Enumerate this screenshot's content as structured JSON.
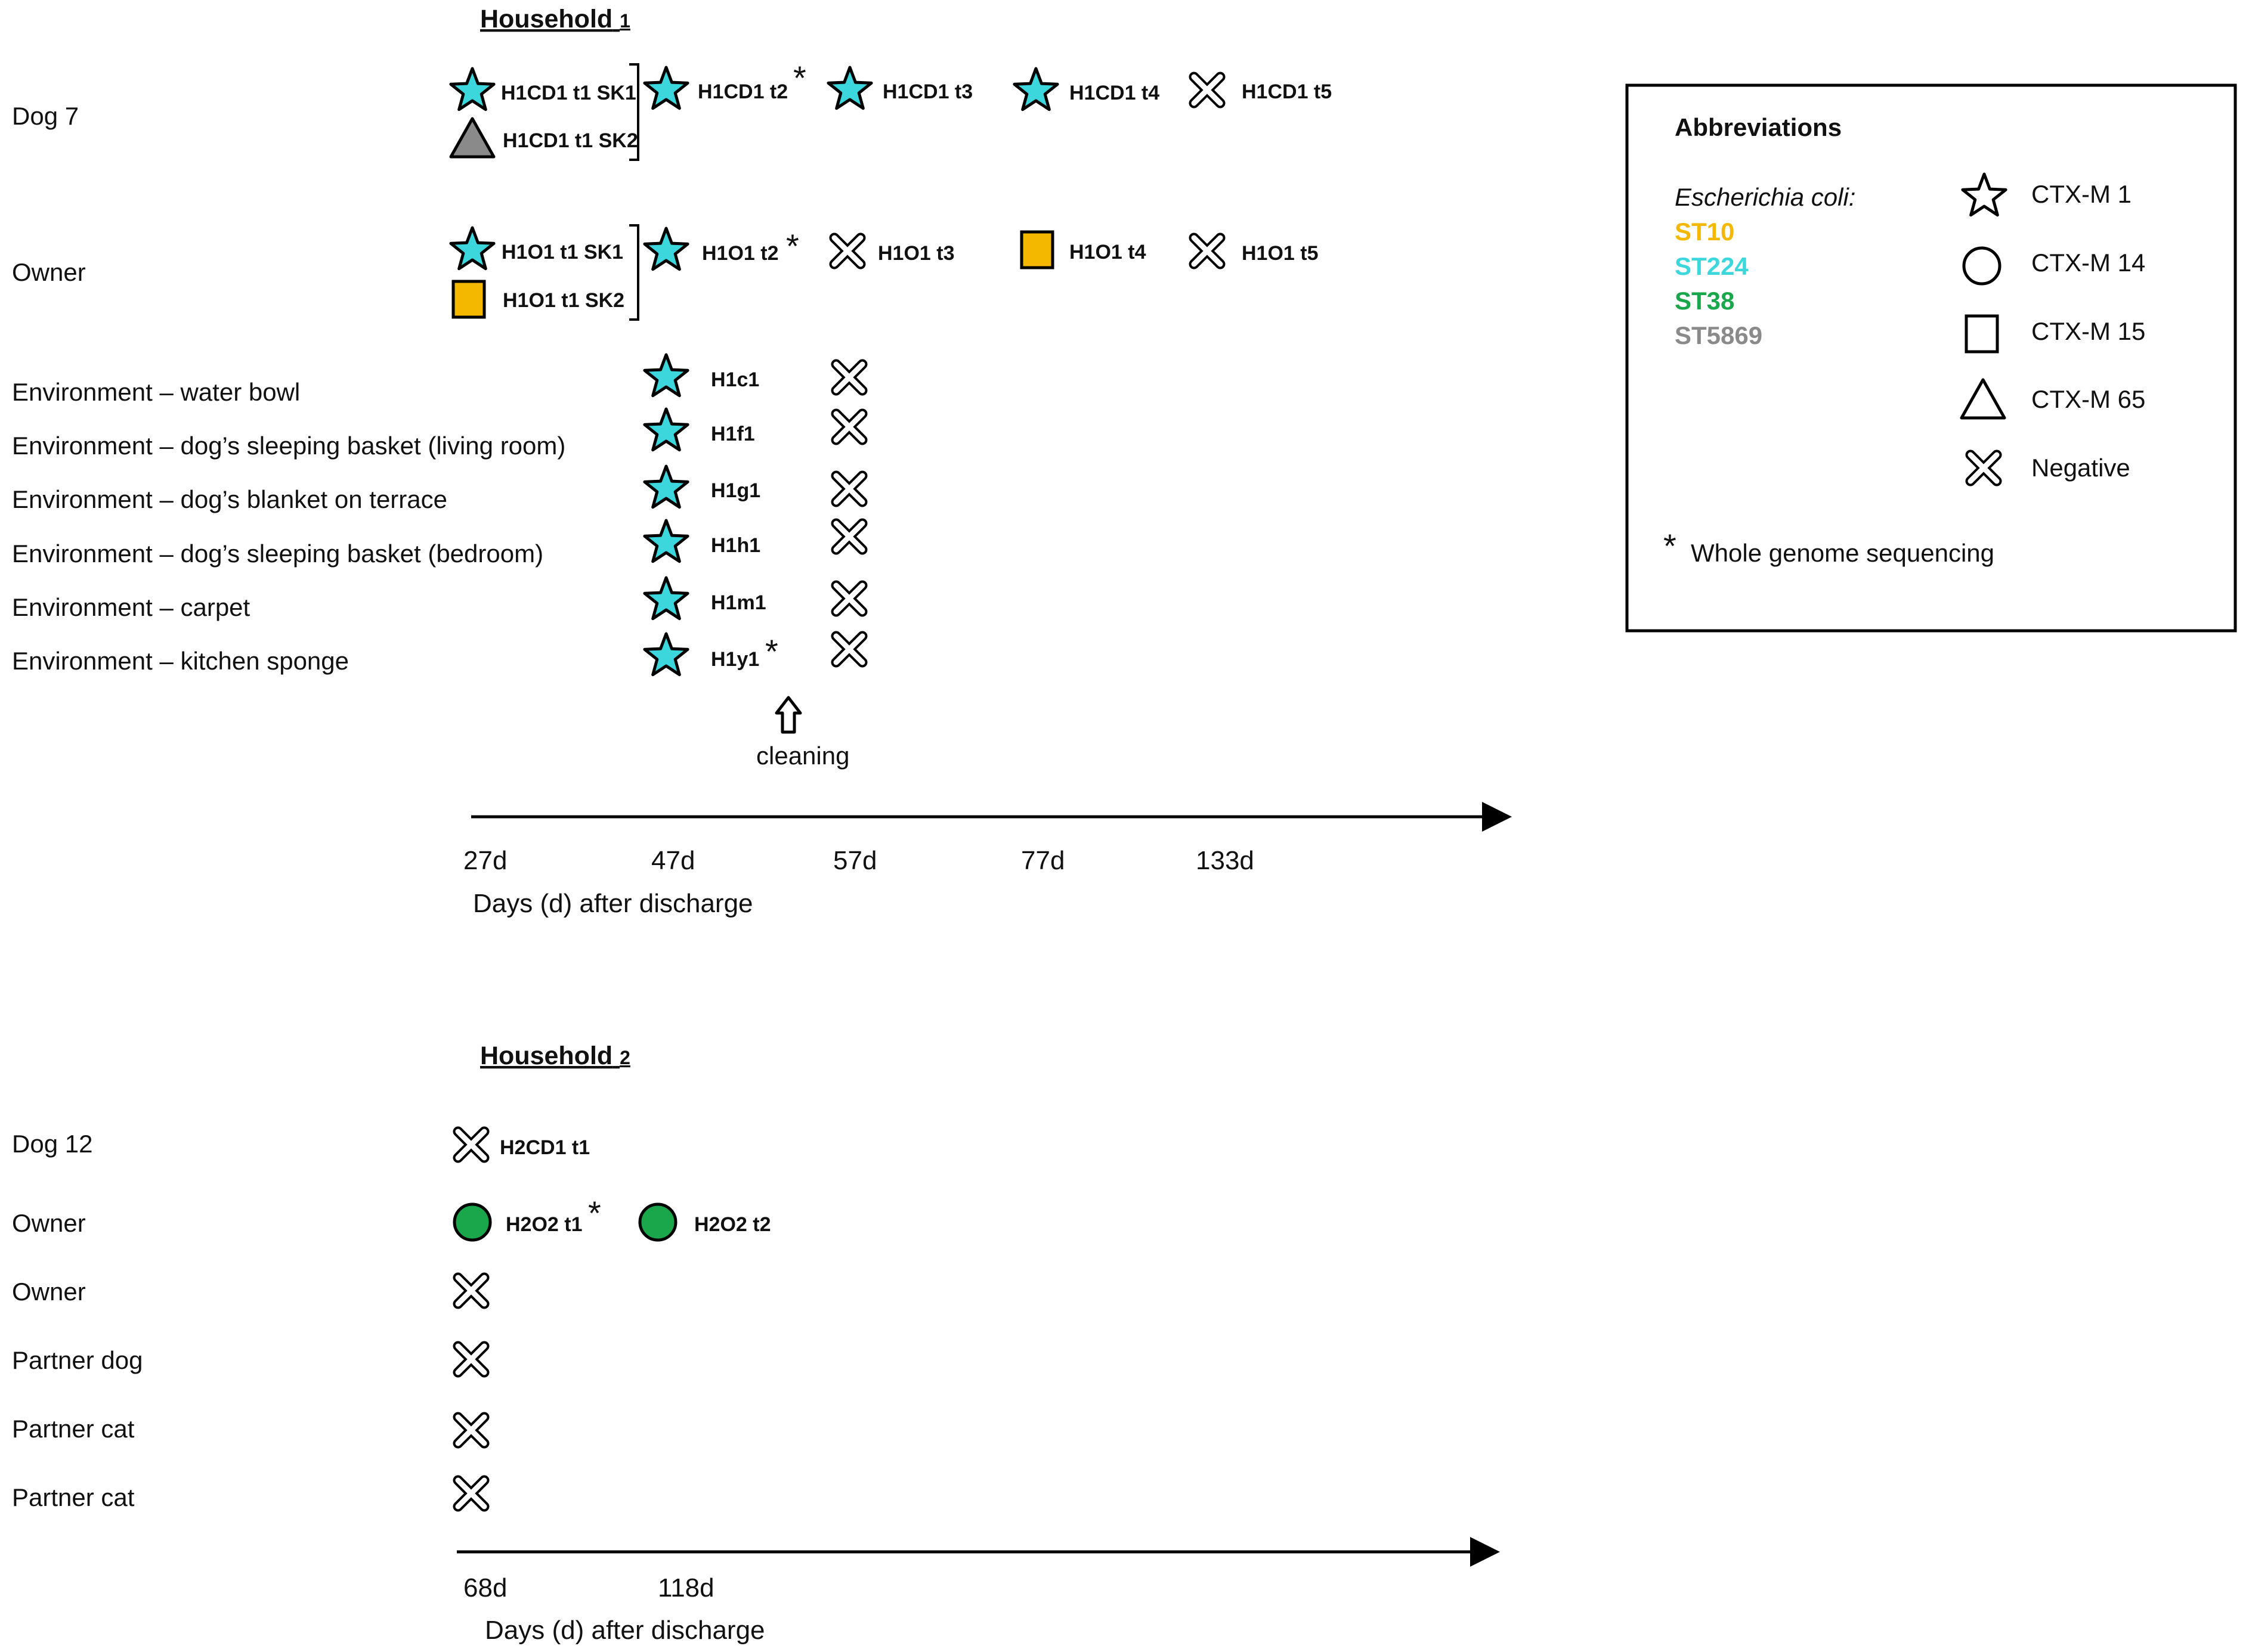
{
  "colors": {
    "ST10": "#F5B800",
    "ST224": "#3CD7DD",
    "ST38": "#1AA64A",
    "ST5869": "#8A8A8A"
  },
  "household1": {
    "title": "Household",
    "title_num": "1",
    "rows": {
      "dog": "Dog 7",
      "owner": "Owner",
      "env1": "Environment – water bowl",
      "env2": "Environment – dog’s sleeping basket (living room)",
      "env3": "Environment – dog’s blanket on terrace",
      "env4": "Environment – dog’s sleeping basket (bedroom)",
      "env5": "Environment – carpet",
      "env6": "Environment – kitchen sponge"
    },
    "samples": {
      "dog_t1_sk1": "H1CD1 t1 SK1",
      "dog_t1_sk2": "H1CD1 t1 SK2",
      "dog_t2": "H1CD1 t2",
      "dog_t3": "H1CD1 t3",
      "dog_t4": "H1CD1 t4",
      "dog_t5": "H1CD1 t5",
      "own_t1_sk1": "H1O1 t1 SK1",
      "own_t1_sk2": "H1O1 t1 SK2",
      "own_t2": "H1O1 t2",
      "own_t3": "H1O1 t3",
      "own_t4": "H1O1 t4",
      "own_t5": "H1O1 t5",
      "env1": "H1c1",
      "env2": "H1f1",
      "env3": "H1g1",
      "env4": "H1h1",
      "env5": "H1m1",
      "env6": "H1y1"
    },
    "cleaning": "cleaning",
    "ticks": [
      "27d",
      "47d",
      "57d",
      "77d",
      "133d"
    ],
    "axis_title": "Days (d) after discharge"
  },
  "household2": {
    "title": "Household",
    "title_num": "2",
    "rows": {
      "dog": "Dog 12",
      "owner1": "Owner",
      "owner2": "Owner",
      "partner_dog": "Partner dog",
      "partner_cat1": "Partner cat",
      "partner_cat2": "Partner cat"
    },
    "samples": {
      "dog_t1": "H2CD1 t1",
      "own_t1": "H2O2 t1",
      "own_t2": "H2O2 t2"
    },
    "ticks": [
      "68d",
      "118d"
    ],
    "axis_title": "Days (d) after discharge"
  },
  "legend": {
    "title": "Abbreviations",
    "ecoli": "Escherichia coli:",
    "st10": "ST10",
    "st224": "ST224",
    "st38": "ST38",
    "st5869": "ST5869",
    "ctxm1": "CTX-M 1",
    "ctxm14": "CTX-M 14",
    "ctxm15": "CTX-M 15",
    "ctxm65": "CTX-M 65",
    "negative": "Negative",
    "wgs_mark": "*",
    "wgs": "Whole genome sequencing"
  },
  "wgs_mark": "*"
}
